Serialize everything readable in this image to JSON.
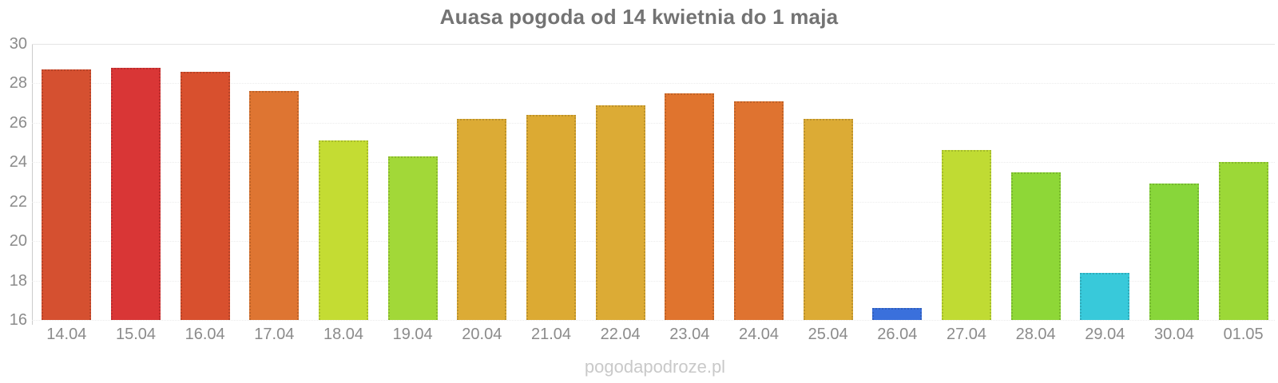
{
  "chart": {
    "title": "Auasa pogoda od 14 kwietnia do 1 maja"
  },
  "chart_data": {
    "type": "bar",
    "title": "Auasa pogoda od 14 kwietnia do 1 maja",
    "categories": [
      "14.04",
      "15.04",
      "16.04",
      "17.04",
      "18.04",
      "19.04",
      "20.04",
      "21.04",
      "22.04",
      "23.04",
      "24.04",
      "25.04",
      "26.04",
      "27.04",
      "28.04",
      "29.04",
      "30.04",
      "01.05"
    ],
    "values": [
      28.7,
      28.8,
      28.6,
      27.6,
      25.1,
      24.3,
      26.2,
      26.4,
      26.9,
      27.5,
      27.1,
      26.2,
      16.6,
      24.6,
      23.5,
      18.4,
      22.9,
      24.0
    ],
    "bar_colors": [
      "#d55030",
      "#d93636",
      "#d8502e",
      "#de7532",
      "#c4dc33",
      "#a2d838",
      "#dcab35",
      "#dcaa33",
      "#dcab35",
      "#e0742e",
      "#df7330",
      "#dcab35",
      "#3a70dc",
      "#c0db33",
      "#8ed737",
      "#38c9da",
      "#88d63a",
      "#9cd837"
    ],
    "xlabel": "",
    "ylabel": "",
    "ylim": [
      16,
      30
    ],
    "yticks": [
      16,
      18,
      20,
      22,
      24,
      26,
      28,
      30
    ],
    "grid": "horizontal-faint-dotted",
    "legend": "none"
  },
  "footer": {
    "watermark": "pogodapodroze.pl"
  },
  "colors": {
    "background": "#ffffff",
    "title_text": "#737373",
    "axis_label_text": "#8b8b8b",
    "axis_line": "#cccccc",
    "gridline": "#ececec",
    "watermark_text": "#c9c9c9"
  }
}
